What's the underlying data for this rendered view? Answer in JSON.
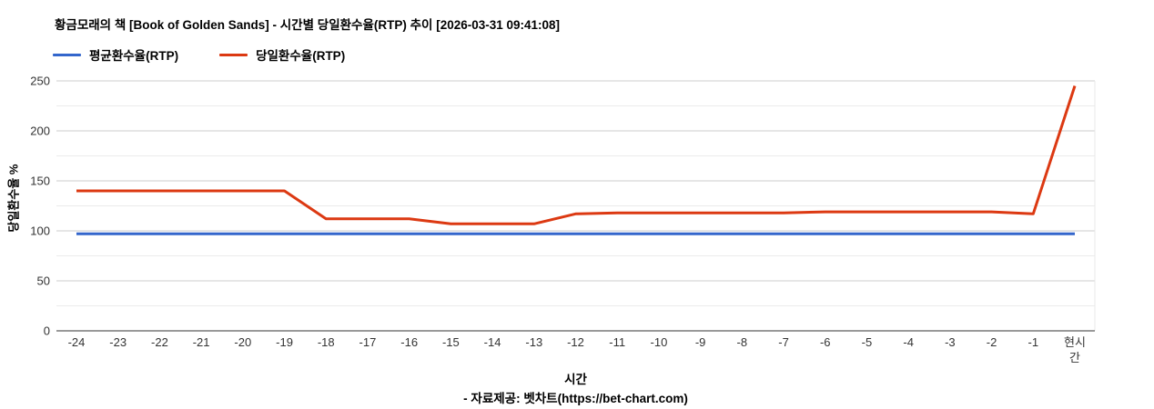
{
  "title": "황금모래의 책 [Book of Golden Sands] - 시간별 당일환수율(RTP) 추이 [2026-03-31 09:41:08]",
  "legend": [
    {
      "label": "평균환수율(RTP)",
      "color": "#3366cc"
    },
    {
      "label": "당일환수율(RTP)",
      "color": "#dc3912"
    }
  ],
  "footer": "- 자료제공: 벳차트(https://bet-chart.com)",
  "chart_data": {
    "type": "line",
    "title": "황금모래의 책 [Book of Golden Sands] - 시간별 당일환수율(RTP) 추이 [2026-03-31 09:41:08]",
    "xlabel": "시간",
    "ylabel": "당일환수율 %",
    "categories": [
      "-24",
      "-23",
      "-22",
      "-21",
      "-20",
      "-19",
      "-18",
      "-17",
      "-16",
      "-15",
      "-14",
      "-13",
      "-12",
      "-11",
      "-10",
      "-9",
      "-8",
      "-7",
      "-6",
      "-5",
      "-4",
      "-3",
      "-2",
      "-1",
      "현시간"
    ],
    "series": [
      {
        "name": "평균환수율(RTP)",
        "color": "#3366cc",
        "values": [
          97,
          97,
          97,
          97,
          97,
          97,
          97,
          97,
          97,
          97,
          97,
          97,
          97,
          97,
          97,
          97,
          97,
          97,
          97,
          97,
          97,
          97,
          97,
          97,
          97
        ]
      },
      {
        "name": "당일환수율(RTP)",
        "color": "#dc3912",
        "values": [
          140,
          140,
          140,
          140,
          140,
          140,
          112,
          112,
          112,
          107,
          107,
          107,
          117,
          118,
          118,
          118,
          118,
          118,
          119,
          119,
          119,
          119,
          119,
          117,
          245
        ]
      }
    ],
    "ylim": [
      0,
      250
    ],
    "yticks": [
      0,
      50,
      100,
      150,
      200,
      250
    ],
    "minor_gridline_step": 25,
    "grid": true,
    "legend_position": "top-left",
    "colors": {
      "major_grid": "#cccccc",
      "minor_grid": "#ebebeb",
      "axis_line": "#333333",
      "tick_text": "#333333"
    }
  }
}
